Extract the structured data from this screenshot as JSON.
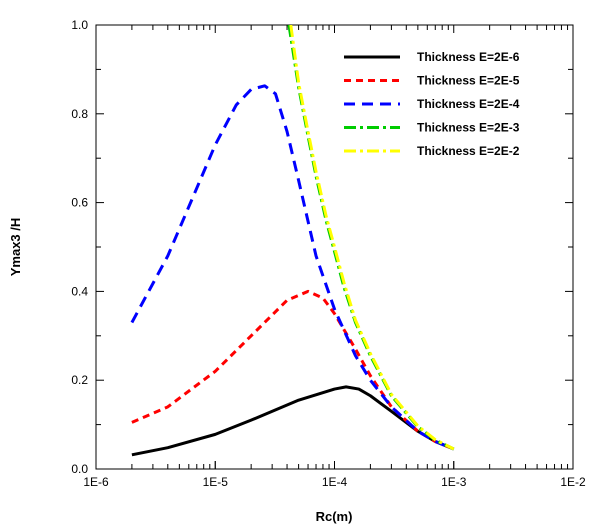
{
  "chart_data": {
    "type": "line",
    "xlabel": "Rc(m)",
    "ylabel": "Ymax3 /H",
    "x_scale": "log",
    "xlim": [
      1e-06,
      0.01
    ],
    "ylim": [
      0,
      1.0
    ],
    "grid": false,
    "legend_position": "top-right",
    "x_ticks": [
      {
        "value": 1e-06,
        "label": "1E-6"
      },
      {
        "value": 1e-05,
        "label": "1E-5"
      },
      {
        "value": 0.0001,
        "label": "1E-4"
      },
      {
        "value": 0.001,
        "label": "1E-3"
      },
      {
        "value": 0.01,
        "label": "1E-2"
      }
    ],
    "y_ticks": [
      {
        "value": 0.0,
        "label": "0.0"
      },
      {
        "value": 0.2,
        "label": "0.2"
      },
      {
        "value": 0.4,
        "label": "0.4"
      },
      {
        "value": 0.6,
        "label": "0.6"
      },
      {
        "value": 0.8,
        "label": "0.8"
      },
      {
        "value": 1.0,
        "label": "1.0"
      }
    ],
    "series": [
      {
        "name": "Thickness E=2E-6",
        "color": "#000000",
        "style": "solid",
        "x": [
          2e-06,
          4e-06,
          1e-05,
          2e-05,
          5e-05,
          0.0001,
          0.000125,
          0.00016,
          0.0002,
          0.0003,
          0.0005,
          0.0007,
          0.001
        ],
        "y": [
          0.032,
          0.048,
          0.078,
          0.11,
          0.155,
          0.18,
          0.185,
          0.18,
          0.165,
          0.13,
          0.085,
          0.062,
          0.045
        ]
      },
      {
        "name": "Thickness E=2E-5",
        "color": "#ff0000",
        "style": "dashed",
        "x": [
          2e-06,
          4e-06,
          1e-05,
          2e-05,
          4e-05,
          6e-05,
          8e-05,
          0.0001,
          0.00015,
          0.0002,
          0.0003,
          0.0005,
          0.0007,
          0.001
        ],
        "y": [
          0.105,
          0.14,
          0.22,
          0.3,
          0.38,
          0.4,
          0.385,
          0.35,
          0.27,
          0.21,
          0.14,
          0.085,
          0.062,
          0.045
        ]
      },
      {
        "name": "Thickness E=2E-4",
        "color": "#0000ff",
        "style": "longdash",
        "x": [
          2e-06,
          4e-06,
          1e-05,
          1.5e-05,
          2e-05,
          2.6e-05,
          3.2e-05,
          4e-05,
          5e-05,
          7e-05,
          0.0001,
          0.00015,
          0.0002,
          0.0003,
          0.0005,
          0.0007,
          0.001
        ],
        "y": [
          0.33,
          0.48,
          0.73,
          0.82,
          0.855,
          0.863,
          0.845,
          0.76,
          0.65,
          0.48,
          0.36,
          0.255,
          0.2,
          0.14,
          0.085,
          0.062,
          0.045
        ]
      },
      {
        "name": "Thickness E=2E-3",
        "color": "#00cc00",
        "style": "dashdot",
        "x": [
          4.15e-05,
          5e-05,
          6e-05,
          7e-05,
          8.5e-05,
          0.0001,
          0.00012,
          0.00015,
          0.0002,
          0.0003,
          0.0005,
          0.0007,
          0.001
        ],
        "y": [
          1.0,
          0.86,
          0.75,
          0.66,
          0.56,
          0.49,
          0.41,
          0.33,
          0.255,
          0.165,
          0.095,
          0.065,
          0.045
        ]
      },
      {
        "name": "Thickness E=2E-2",
        "color": "#ffff00",
        "style": "dashdot",
        "x": [
          4.3e-05,
          5e-05,
          6e-05,
          7e-05,
          8.5e-05,
          0.0001,
          0.00012,
          0.00015,
          0.0002,
          0.0003,
          0.0005,
          0.0007,
          0.001
        ],
        "y": [
          1.0,
          0.87,
          0.76,
          0.67,
          0.57,
          0.5,
          0.42,
          0.335,
          0.26,
          0.168,
          0.097,
          0.066,
          0.045
        ]
      }
    ]
  }
}
